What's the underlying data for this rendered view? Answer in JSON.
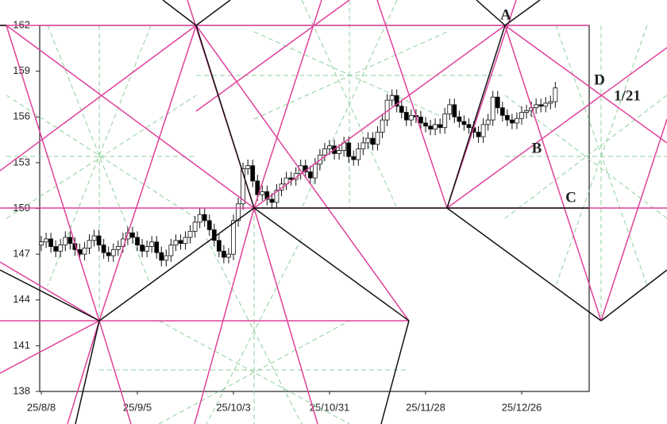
{
  "chart_data": {
    "type": "candlestick",
    "categories": [
      "25/8/8",
      null,
      null,
      null,
      null,
      null,
      null,
      null,
      null,
      null,
      null,
      null,
      null,
      null,
      null,
      null,
      null,
      null,
      null,
      null,
      "25/9/5",
      null,
      null,
      null,
      null,
      null,
      null,
      null,
      null,
      null,
      null,
      null,
      null,
      null,
      null,
      null,
      null,
      null,
      null,
      null,
      "25/10/3",
      null,
      null,
      null,
      null,
      null,
      null,
      null,
      null,
      null,
      null,
      null,
      null,
      null,
      null,
      null,
      null,
      null,
      null,
      null,
      "25/10/31",
      null,
      null,
      null,
      null,
      null,
      null,
      null,
      null,
      null,
      null,
      null,
      null,
      null,
      null,
      null,
      null,
      null,
      null,
      null,
      "25/11/28",
      null,
      null,
      null,
      null,
      null,
      null,
      null,
      null,
      null,
      null,
      null,
      null,
      null,
      null,
      null,
      null,
      null,
      null,
      null,
      "25/12/26",
      null,
      null,
      null,
      null,
      null,
      null,
      null
    ],
    "open": [
      147.6,
      147.8,
      148.0,
      147.5,
      147.2,
      147.6,
      148.1,
      147.7,
      147.3,
      147.0,
      147.4,
      147.9,
      148.2,
      147.6,
      147.1,
      146.9,
      147.3,
      147.5,
      148.0,
      148.4,
      148.1,
      147.6,
      147.2,
      147.5,
      147.8,
      147.1,
      146.6,
      146.9,
      147.6,
      147.9,
      147.7,
      148.1,
      148.5,
      149.1,
      149.6,
      149.2,
      148.6,
      147.9,
      147.2,
      146.8,
      147.0,
      149.2,
      150.3,
      152.6,
      152.8,
      151.8,
      150.9,
      151.1,
      150.6,
      150.4,
      151.2,
      151.6,
      152.0,
      151.9,
      152.3,
      152.8,
      152.4,
      152.0,
      152.9,
      153.5,
      153.9,
      154.1,
      153.6,
      153.8,
      154.3,
      153.4,
      153.2,
      153.9,
      154.3,
      154.6,
      154.2,
      155.0,
      155.8,
      157.1,
      157.4,
      156.7,
      156.3,
      155.8,
      156.1,
      156.0,
      155.6,
      155.4,
      155.2,
      155.5,
      155.3,
      156.2,
      156.8,
      156.0,
      155.7,
      155.5,
      155.3,
      155.0,
      154.7,
      155.5,
      155.8,
      157.3,
      156.6,
      156.1,
      155.8,
      155.6,
      155.9,
      156.3,
      156.4,
      156.6,
      156.8,
      156.7,
      156.9,
      157.0
    ],
    "high": [
      148.2,
      148.4,
      148.4,
      147.9,
      148.0,
      148.5,
      148.5,
      148.1,
      147.7,
      147.8,
      148.3,
      148.6,
      148.6,
      148.0,
      147.5,
      147.7,
      147.9,
      148.4,
      148.8,
      148.8,
      148.5,
      148.0,
      147.9,
      148.2,
      148.2,
      147.5,
      147.3,
      148.0,
      148.3,
      148.3,
      148.5,
      148.9,
      149.5,
      150.0,
      150.0,
      149.6,
      149.0,
      148.3,
      147.6,
      147.4,
      149.6,
      150.7,
      153.0,
      153.2,
      153.2,
      152.2,
      151.5,
      151.5,
      151.0,
      151.6,
      152.0,
      152.4,
      152.4,
      152.7,
      153.2,
      153.2,
      152.8,
      153.3,
      153.9,
      154.3,
      154.5,
      154.5,
      154.2,
      154.7,
      154.7,
      153.8,
      154.3,
      154.7,
      155.0,
      155.0,
      155.4,
      156.2,
      157.5,
      157.8,
      157.8,
      157.1,
      156.7,
      156.5,
      156.5,
      156.4,
      156.0,
      155.8,
      155.9,
      155.9,
      156.6,
      157.2,
      157.2,
      156.4,
      156.1,
      155.9,
      155.7,
      155.4,
      155.9,
      156.2,
      157.7,
      157.7,
      157.0,
      156.5,
      156.2,
      156.3,
      156.7,
      156.8,
      157.0,
      157.2,
      157.2,
      157.3,
      157.4,
      158.3
    ],
    "low": [
      147.2,
      147.4,
      147.1,
      146.8,
      146.8,
      147.2,
      147.3,
      146.9,
      146.6,
      146.6,
      147.0,
      147.5,
      147.2,
      146.7,
      146.5,
      146.5,
      146.9,
      147.1,
      147.6,
      147.7,
      147.2,
      146.8,
      146.8,
      147.1,
      146.7,
      146.2,
      146.2,
      146.5,
      147.2,
      147.3,
      147.3,
      147.7,
      148.1,
      148.7,
      148.8,
      148.2,
      147.5,
      146.8,
      146.4,
      146.4,
      146.6,
      148.8,
      149.9,
      152.2,
      151.4,
      150.5,
      150.5,
      150.2,
      150.0,
      150.0,
      150.8,
      151.2,
      151.5,
      151.5,
      151.9,
      152.0,
      151.6,
      151.6,
      152.5,
      153.1,
      153.5,
      153.2,
      153.2,
      153.4,
      153.0,
      152.8,
      152.8,
      153.5,
      153.9,
      153.8,
      153.8,
      154.6,
      155.4,
      156.7,
      156.3,
      155.9,
      155.4,
      155.4,
      155.6,
      155.2,
      155.0,
      154.8,
      154.8,
      154.9,
      154.9,
      155.8,
      155.6,
      155.3,
      155.1,
      154.9,
      154.6,
      154.3,
      154.3,
      155.1,
      155.4,
      156.2,
      155.7,
      155.4,
      155.2,
      155.2,
      155.5,
      155.9,
      156.0,
      156.2,
      156.3,
      156.3,
      156.5,
      156.6
    ],
    "close": [
      147.8,
      148.0,
      147.5,
      147.2,
      147.6,
      148.1,
      147.7,
      147.3,
      147.0,
      147.4,
      147.9,
      148.2,
      147.6,
      147.1,
      146.9,
      147.3,
      147.5,
      148.0,
      148.4,
      148.1,
      147.6,
      147.2,
      147.5,
      147.8,
      147.1,
      146.6,
      146.9,
      147.6,
      147.9,
      147.7,
      148.1,
      148.5,
      149.1,
      149.6,
      149.2,
      148.6,
      147.9,
      147.2,
      146.8,
      147.0,
      149.2,
      150.3,
      152.6,
      152.8,
      151.8,
      150.9,
      151.1,
      150.6,
      150.4,
      151.2,
      151.6,
      152.0,
      151.9,
      152.3,
      152.8,
      152.4,
      152.0,
      152.9,
      153.5,
      153.9,
      154.1,
      153.6,
      153.8,
      154.3,
      153.4,
      153.2,
      153.9,
      154.3,
      154.6,
      154.2,
      155.0,
      155.8,
      157.1,
      157.4,
      156.7,
      156.3,
      155.8,
      156.1,
      156.0,
      155.6,
      155.4,
      155.2,
      155.5,
      155.3,
      156.2,
      156.8,
      156.0,
      155.7,
      155.5,
      155.3,
      155.0,
      154.7,
      155.5,
      155.8,
      157.3,
      156.6,
      156.1,
      155.8,
      155.6,
      155.9,
      156.3,
      156.4,
      156.6,
      156.8,
      156.7,
      156.9,
      157.0,
      157.9
    ],
    "up_color": "#ffffff",
    "down_color": "#000000",
    "ylim": [
      138,
      162
    ],
    "yticks": [
      138,
      141,
      144,
      147,
      150,
      153,
      156,
      159,
      162
    ],
    "annotations": [
      {
        "text": "A",
        "color": "#e00000"
      },
      {
        "text": "D",
        "color": "#e00000"
      },
      {
        "text": "1/21",
        "color": "#111111"
      },
      {
        "text": "B",
        "color": "#e00000"
      },
      {
        "text": "C",
        "color": "#e00000"
      }
    ]
  }
}
